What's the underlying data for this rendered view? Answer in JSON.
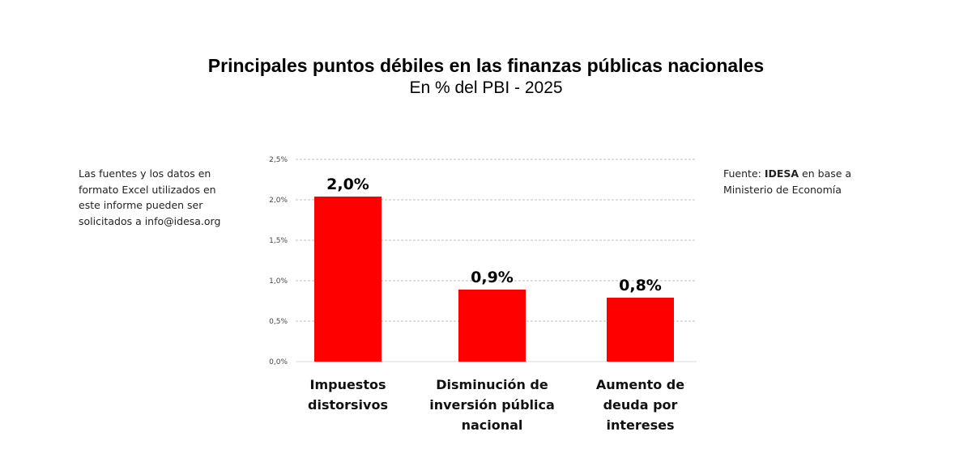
{
  "chart_data": {
    "type": "bar",
    "title": "Principales puntos débiles en las finanzas públicas nacionales",
    "subtitle": "En % del PBI - 2025",
    "categories": [
      "Impuestos distorsivos",
      "Disminución de inversión pública nacional",
      "Aumento de deuda por intereses"
    ],
    "values": [
      2.04,
      0.89,
      0.79
    ],
    "data_labels": [
      "2,0%",
      "0,9%",
      "0,8%"
    ],
    "ylim": [
      0,
      2.5
    ],
    "yticks": [
      0,
      0.5,
      1.0,
      1.5,
      2.0,
      2.5
    ],
    "ytick_labels": [
      "0,0%",
      "0,5%",
      "1,0%",
      "1,5%",
      "2,0%",
      "2,5%"
    ],
    "xlabel": "",
    "ylabel": "",
    "grid": true,
    "bar_color": "#ff0000"
  },
  "note": "Las fuentes y los datos en formato Excel utilizados en este informe pueden ser solicitados a info@idesa.org",
  "source": {
    "prefix": "Fuente: ",
    "org": "IDESA",
    "suffix": " en base a Ministerio de Economía"
  }
}
